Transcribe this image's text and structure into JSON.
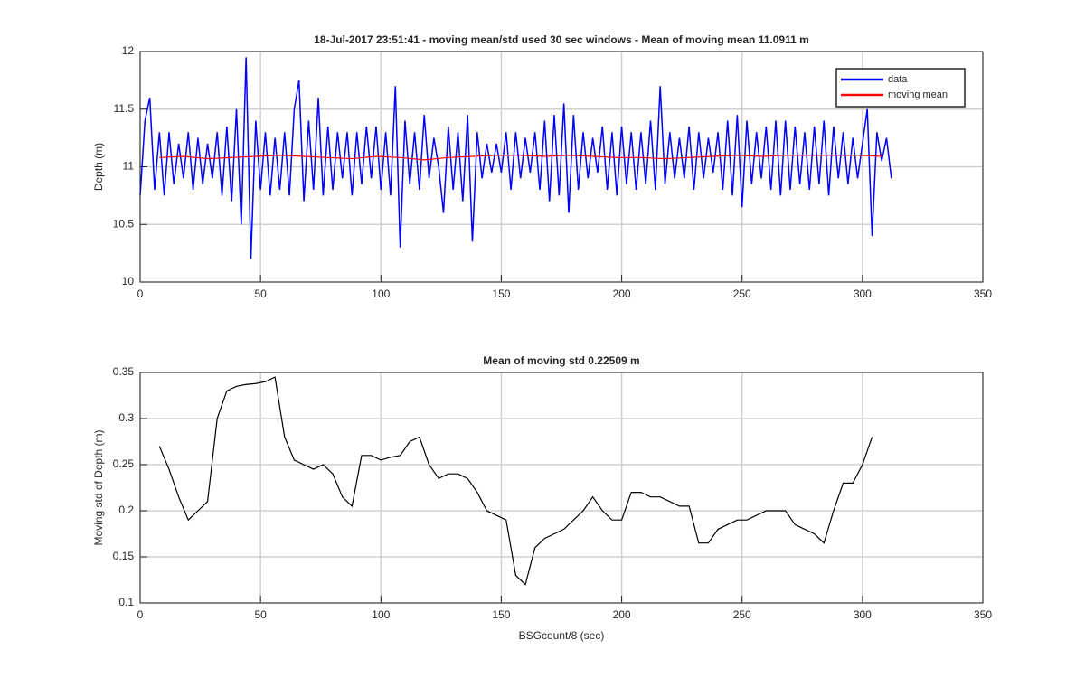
{
  "chart_data": [
    {
      "type": "line",
      "title": "18-Jul-2017 23:51:41 - moving mean/std used 30 sec windows - Mean of moving mean 11.0911 m",
      "y_label": "Depth (m)",
      "xlim": [
        0,
        350
      ],
      "xticks": [
        0,
        50,
        100,
        150,
        200,
        250,
        300,
        350
      ],
      "ylim": [
        10,
        12
      ],
      "yticks": [
        10,
        10.5,
        11,
        11.5,
        12
      ],
      "grid": true,
      "legend": "northeast",
      "series": [
        {
          "name": "data",
          "color": "#0000ff",
          "x": [
            0,
            2,
            4,
            6,
            8,
            10,
            12,
            14,
            16,
            18,
            20,
            22,
            24,
            26,
            28,
            30,
            32,
            34,
            36,
            38,
            40,
            42,
            44,
            46,
            48,
            50,
            52,
            54,
            56,
            58,
            60,
            62,
            64,
            66,
            68,
            70,
            72,
            74,
            76,
            78,
            80,
            82,
            84,
            86,
            88,
            90,
            92,
            94,
            96,
            98,
            100,
            102,
            104,
            106,
            108,
            110,
            112,
            114,
            116,
            118,
            120,
            122,
            124,
            126,
            128,
            130,
            132,
            134,
            136,
            138,
            140,
            142,
            144,
            146,
            148,
            150,
            152,
            154,
            156,
            158,
            160,
            162,
            164,
            166,
            168,
            170,
            172,
            174,
            176,
            178,
            180,
            182,
            184,
            186,
            188,
            190,
            192,
            194,
            196,
            198,
            200,
            202,
            204,
            206,
            208,
            210,
            212,
            214,
            216,
            218,
            220,
            222,
            224,
            226,
            228,
            230,
            232,
            234,
            236,
            238,
            240,
            242,
            244,
            246,
            248,
            250,
            252,
            254,
            256,
            258,
            260,
            262,
            264,
            266,
            268,
            270,
            272,
            274,
            276,
            278,
            280,
            282,
            284,
            286,
            288,
            290,
            292,
            294,
            296,
            298,
            300,
            302,
            304,
            306,
            308,
            310,
            312
          ],
          "values": [
            10.75,
            11.4,
            11.6,
            10.8,
            11.3,
            10.75,
            11.3,
            10.85,
            11.2,
            10.9,
            11.3,
            10.8,
            11.25,
            10.85,
            11.2,
            10.9,
            11.3,
            10.75,
            11.35,
            10.7,
            11.5,
            10.5,
            11.95,
            10.2,
            11.4,
            10.8,
            11.3,
            10.75,
            11.25,
            10.8,
            11.3,
            10.75,
            11.5,
            11.75,
            10.7,
            11.4,
            10.8,
            11.6,
            10.75,
            11.35,
            10.8,
            11.3,
            10.9,
            11.3,
            10.75,
            11.3,
            10.85,
            11.35,
            10.9,
            11.35,
            10.8,
            11.3,
            10.75,
            11.7,
            10.3,
            11.4,
            10.85,
            11.3,
            10.8,
            11.45,
            10.9,
            11.25,
            11.0,
            10.6,
            11.35,
            10.8,
            11.3,
            10.7,
            11.45,
            10.35,
            11.3,
            10.9,
            11.2,
            10.95,
            11.2,
            10.95,
            11.3,
            10.8,
            11.3,
            10.9,
            11.25,
            10.95,
            11.3,
            10.8,
            11.4,
            10.7,
            11.45,
            10.75,
            11.55,
            10.6,
            11.45,
            10.8,
            11.3,
            10.9,
            11.25,
            10.95,
            11.35,
            10.8,
            11.3,
            10.75,
            11.35,
            10.85,
            11.3,
            10.8,
            11.3,
            10.85,
            11.4,
            10.8,
            11.7,
            10.85,
            11.3,
            10.9,
            11.25,
            10.9,
            11.35,
            10.8,
            11.3,
            10.9,
            11.25,
            10.95,
            11.3,
            10.8,
            11.4,
            10.75,
            11.45,
            10.65,
            11.4,
            10.85,
            11.3,
            10.9,
            11.35,
            10.8,
            11.4,
            10.75,
            11.4,
            10.8,
            11.35,
            10.85,
            11.3,
            10.8,
            11.35,
            10.85,
            11.4,
            10.75,
            11.35,
            10.9,
            11.3,
            10.85,
            11.25,
            10.9,
            11.2,
            11.5,
            10.4,
            11.3,
            11.05,
            11.25,
            10.9
          ]
        },
        {
          "name": "moving mean",
          "color": "#ff0000",
          "x": [
            8,
            18,
            28,
            38,
            48,
            58,
            68,
            78,
            88,
            98,
            108,
            118,
            128,
            138,
            148,
            158,
            168,
            178,
            188,
            198,
            208,
            218,
            228,
            238,
            248,
            258,
            268,
            278,
            288,
            298,
            308
          ],
          "values": [
            11.08,
            11.09,
            11.07,
            11.08,
            11.09,
            11.1,
            11.09,
            11.08,
            11.07,
            11.09,
            11.08,
            11.06,
            11.08,
            11.09,
            11.1,
            11.1,
            11.09,
            11.1,
            11.09,
            11.08,
            11.08,
            11.07,
            11.08,
            11.09,
            11.1,
            11.09,
            11.1,
            11.1,
            11.1,
            11.1,
            11.09
          ]
        }
      ]
    },
    {
      "type": "line",
      "title": "Mean of moving std 0.22509 m",
      "x_label": "BSGcount/8 (sec)",
      "y_label": "Moving std of Depth (m)",
      "xlim": [
        0,
        350
      ],
      "xticks": [
        0,
        50,
        100,
        150,
        200,
        250,
        300,
        350
      ],
      "ylim": [
        0.1,
        0.35
      ],
      "yticks": [
        0.1,
        0.15,
        0.2,
        0.25,
        0.3,
        0.35
      ],
      "grid": true,
      "series": [
        {
          "color": "#000000",
          "x": [
            8,
            12,
            16,
            20,
            24,
            28,
            32,
            36,
            40,
            44,
            48,
            52,
            56,
            60,
            64,
            68,
            72,
            76,
            80,
            84,
            88,
            92,
            96,
            100,
            104,
            108,
            112,
            116,
            120,
            124,
            128,
            132,
            136,
            140,
            144,
            148,
            152,
            156,
            160,
            164,
            168,
            172,
            176,
            180,
            184,
            188,
            192,
            196,
            200,
            204,
            208,
            212,
            216,
            220,
            224,
            228,
            232,
            236,
            240,
            244,
            248,
            252,
            256,
            260,
            264,
            268,
            272,
            276,
            280,
            284,
            288,
            292,
            296,
            300,
            304
          ],
          "values": [
            0.27,
            0.245,
            0.215,
            0.19,
            0.2,
            0.21,
            0.3,
            0.33,
            0.335,
            0.337,
            0.338,
            0.34,
            0.345,
            0.28,
            0.255,
            0.25,
            0.245,
            0.25,
            0.24,
            0.215,
            0.205,
            0.26,
            0.26,
            0.255,
            0.258,
            0.26,
            0.275,
            0.28,
            0.25,
            0.235,
            0.24,
            0.24,
            0.235,
            0.22,
            0.2,
            0.195,
            0.19,
            0.13,
            0.12,
            0.16,
            0.17,
            0.175,
            0.18,
            0.19,
            0.2,
            0.215,
            0.2,
            0.19,
            0.19,
            0.22,
            0.22,
            0.215,
            0.215,
            0.21,
            0.205,
            0.205,
            0.165,
            0.165,
            0.18,
            0.185,
            0.19,
            0.19,
            0.195,
            0.2,
            0.2,
            0.2,
            0.185,
            0.18,
            0.175,
            0.165,
            0.2,
            0.23,
            0.23,
            0.25,
            0.28
          ]
        }
      ]
    }
  ]
}
